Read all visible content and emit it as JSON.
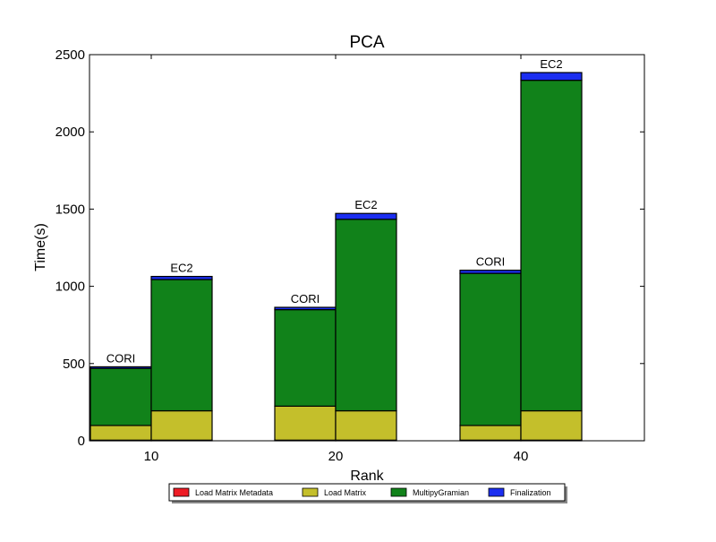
{
  "chart_data": {
    "type": "bar",
    "stacked": true,
    "title": "PCA",
    "xlabel": "Rank",
    "ylabel": "Time(s)",
    "ylim": [
      0,
      2500
    ],
    "yticks": [
      "0",
      "500",
      "1000",
      "1500",
      "2000",
      "2500"
    ],
    "categories": [
      "10",
      "20",
      "40"
    ],
    "bar_labels": [
      "CORI",
      "EC2"
    ],
    "grid": false,
    "legend_position": "bottom",
    "series": [
      {
        "name": "Load Matrix Metadata",
        "color": "#ee1c25",
        "values": [
          [
            4,
            4
          ],
          [
            4,
            4
          ],
          [
            4,
            4
          ]
        ]
      },
      {
        "name": "Load Matrix",
        "color": "#c4bf2b",
        "values": [
          [
            95,
            190
          ],
          [
            220,
            190
          ],
          [
            95,
            190
          ]
        ]
      },
      {
        "name": "MultipyGramian",
        "color": "#11821a",
        "values": [
          [
            370,
            850
          ],
          [
            625,
            1240
          ],
          [
            985,
            2140
          ]
        ]
      },
      {
        "name": "Finalization",
        "color": "#1b2ef0",
        "values": [
          [
            10,
            20
          ],
          [
            15,
            38
          ],
          [
            20,
            50
          ]
        ]
      }
    ]
  }
}
